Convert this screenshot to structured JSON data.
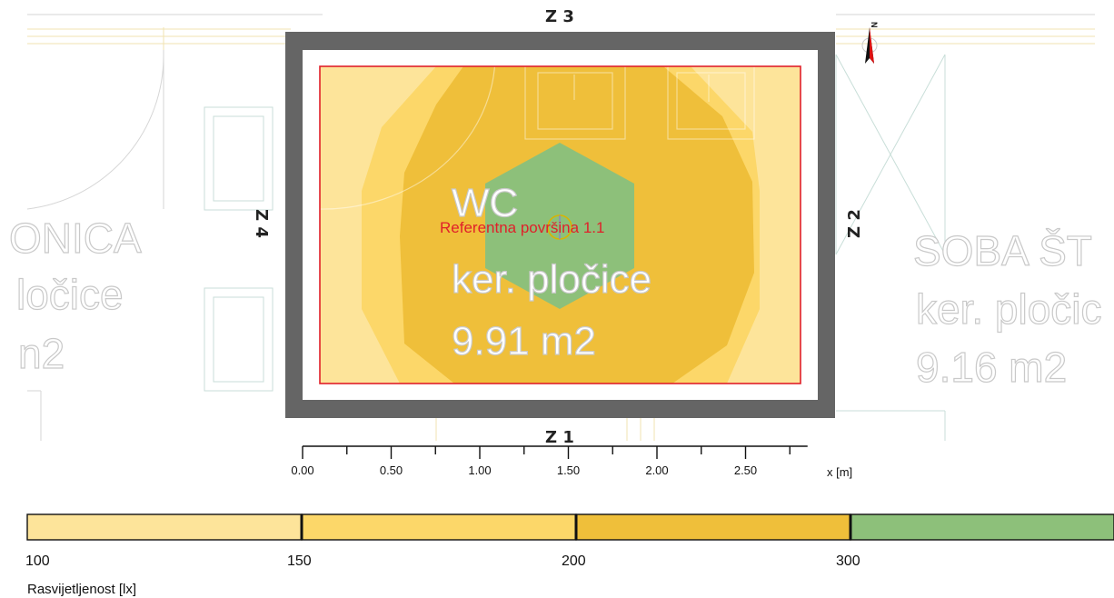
{
  "plan": {
    "room_left": {
      "name": "ONICA",
      "floor": "ločice",
      "area": "n2"
    },
    "room_center": {
      "name": "WC",
      "floor": "ker. pločice",
      "area": "9.91 m2"
    },
    "room_right": {
      "name": "SOBA ŠT",
      "floor": "ker. pločic",
      "area": "9.16 m2"
    },
    "walls": {
      "top": "Z 3",
      "bottom": "Z 1",
      "left": "Z 4",
      "right": "Z 2"
    },
    "north_label": "N",
    "reference_surface": "Referentna površina 1.1"
  },
  "x_axis": {
    "unit_label": "x [m]",
    "ticks": [
      "0.00",
      "0.50",
      "1.00",
      "1.50",
      "2.00",
      "2.50"
    ],
    "range": [
      0.0,
      2.85
    ]
  },
  "legend": {
    "title": "Rasvijetljenost [lx]",
    "bands": [
      {
        "from": 100,
        "to": 150,
        "color": "#fde49a"
      },
      {
        "from": 150,
        "to": 200,
        "color": "#fcd769"
      },
      {
        "from": 200,
        "to": 300,
        "color": "#efbf3a"
      },
      {
        "from": 300,
        "to": null,
        "color": "#8dc07a"
      }
    ],
    "labels": [
      "100",
      "150",
      "200",
      "300"
    ]
  },
  "colors": {
    "wall": "#656565",
    "reference_outline": "#e0202a",
    "reference_text": "#e0202a"
  }
}
